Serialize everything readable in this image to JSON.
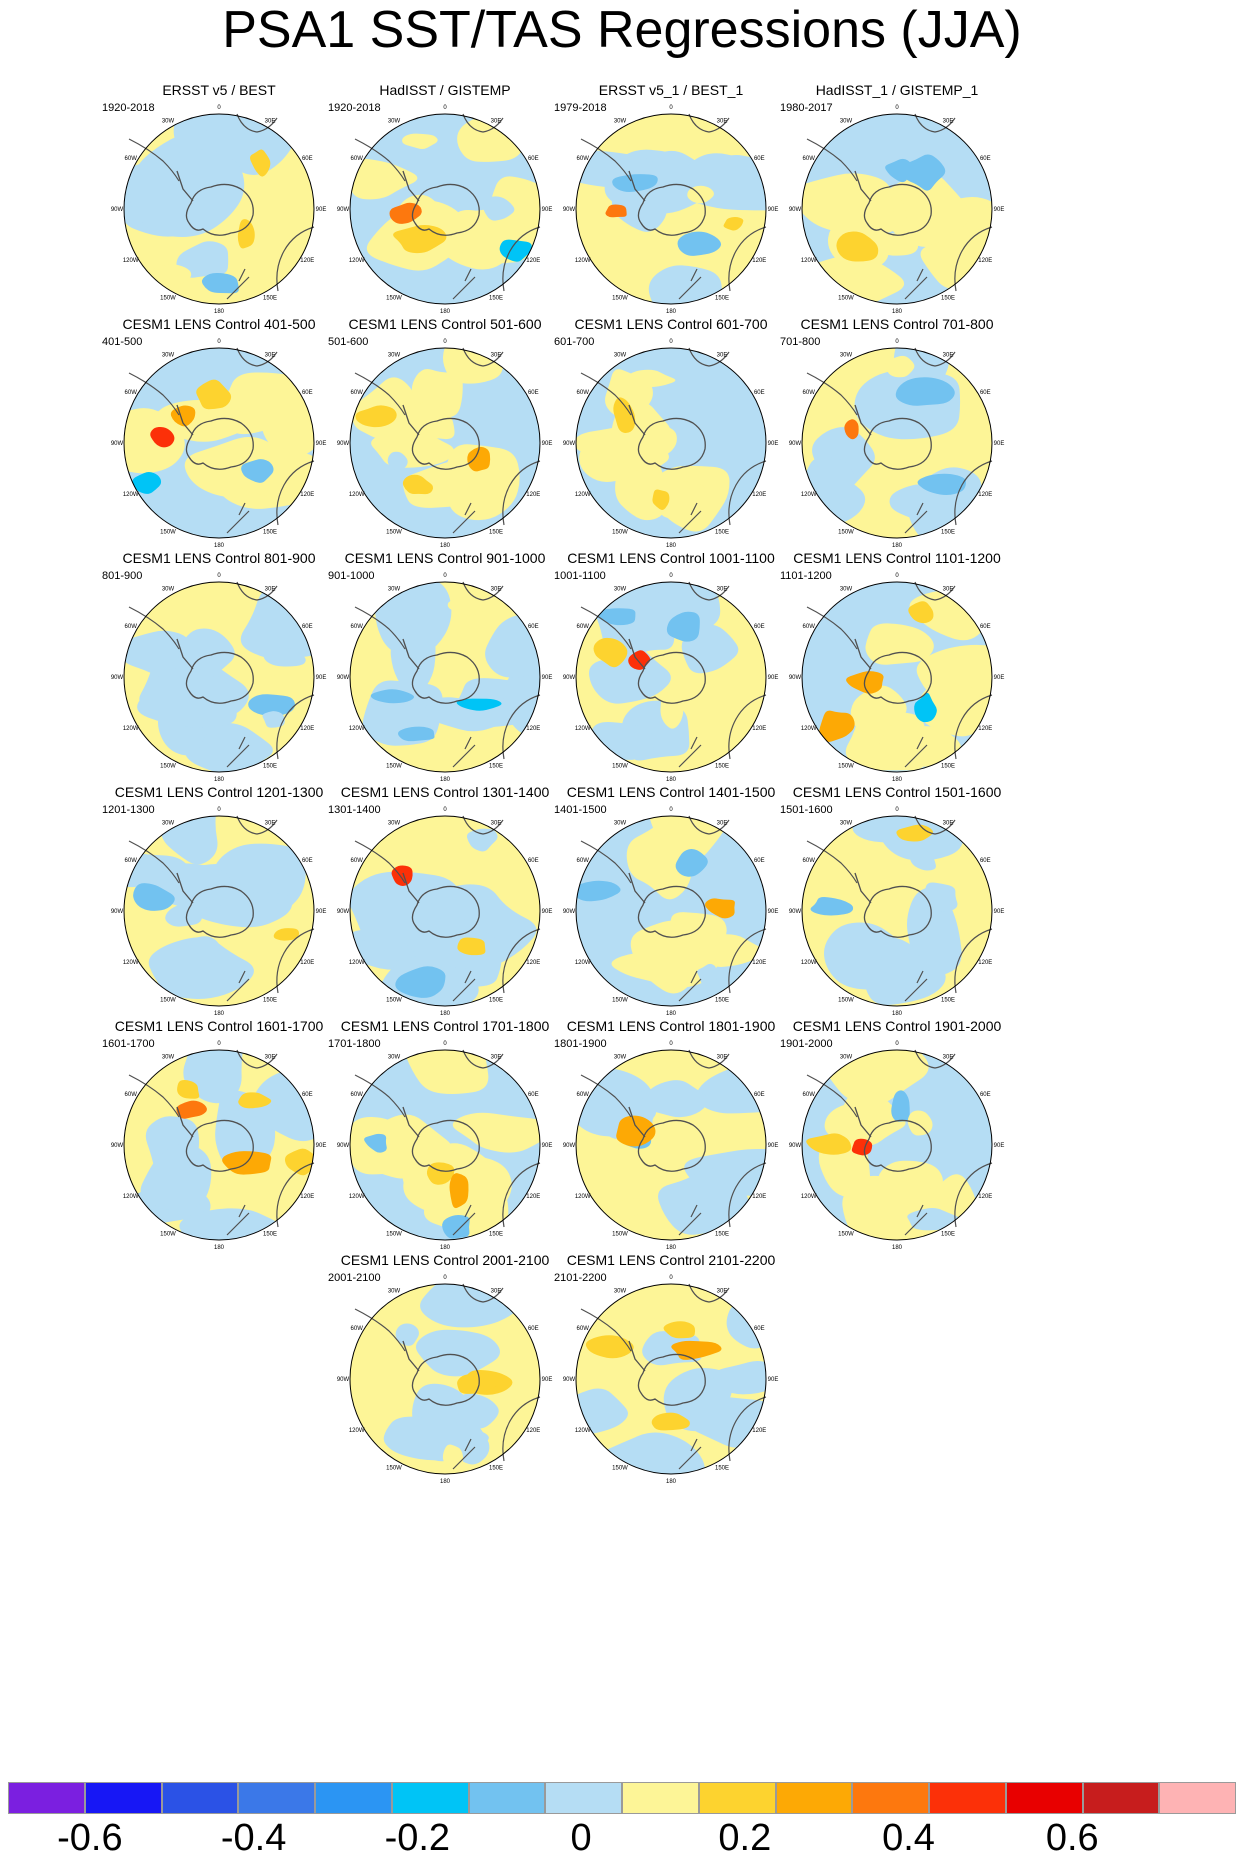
{
  "title": "PSA1 SST/TAS Regressions (JJA)",
  "lon_labels": [
    "0",
    "30E",
    "60E",
    "90E",
    "120E",
    "150E",
    "180",
    "150W",
    "120W",
    "90W",
    "60W",
    "30W"
  ],
  "colors": {
    "levels": [
      "#7b1fe0",
      "#1717f5",
      "#2b52e6",
      "#3b78e8",
      "#2b95f3",
      "#00c4f6",
      "#72c2f0",
      "#b5ddf4",
      "#fdf597",
      "#fdd32f",
      "#fda905",
      "#fd780e",
      "#fc3008",
      "#e80000",
      "#c71d1d",
      "#feb3b4"
    ],
    "ocean_neg": "#b5ddf4",
    "ocean_pos": "#fdf597",
    "coast": "#505050"
  },
  "colorbar": {
    "labels": [
      "-0.6",
      "-0.4",
      "-0.2",
      "0",
      "0.2",
      "0.4",
      "0.6"
    ],
    "values": [
      -0.6,
      -0.4,
      -0.2,
      0,
      0.2,
      0.4,
      0.6
    ],
    "range": [
      -0.7,
      0.8
    ]
  },
  "panels": [
    {
      "title": "ERSST v5 / BEST",
      "period": "1920-2018",
      "base": "pos",
      "seed": 1
    },
    {
      "title": "HadISST / GISTEMP",
      "period": "1920-2018",
      "base": "neg",
      "seed": 2
    },
    {
      "title": "ERSST v5_1 / BEST_1",
      "period": "1979-2018",
      "base": "pos",
      "seed": 3
    },
    {
      "title": "HadISST_1 / GISTEMP_1",
      "period": "1980-2017",
      "base": "neg",
      "seed": 4
    },
    {
      "title": "CESM1 LENS Control 401-500",
      "period": "401-500",
      "base": "neg",
      "seed": 5
    },
    {
      "title": "CESM1 LENS Control 501-600",
      "period": "501-600",
      "base": "neg",
      "seed": 6
    },
    {
      "title": "CESM1 LENS Control 601-700",
      "period": "601-700",
      "base": "neg",
      "seed": 7
    },
    {
      "title": "CESM1 LENS Control 701-800",
      "period": "701-800",
      "base": "pos",
      "seed": 8
    },
    {
      "title": "CESM1 LENS Control 801-900",
      "period": "801-900",
      "base": "pos",
      "seed": 9
    },
    {
      "title": "CESM1 LENS Control 901-1000",
      "period": "901-1000",
      "base": "pos",
      "seed": 10
    },
    {
      "title": "CESM1 LENS Control 1001-1100",
      "period": "1001-1100",
      "base": "pos",
      "seed": 11
    },
    {
      "title": "CESM1 LENS Control 1101-1200",
      "period": "1101-1200",
      "base": "neg",
      "seed": 12
    },
    {
      "title": "CESM1 LENS Control 1201-1300",
      "period": "1201-1300",
      "base": "pos",
      "seed": 13
    },
    {
      "title": "CESM1 LENS Control 1301-1400",
      "period": "1301-1400",
      "base": "pos",
      "seed": 14
    },
    {
      "title": "CESM1 LENS Control 1401-1500",
      "period": "1401-1500",
      "base": "neg",
      "seed": 15
    },
    {
      "title": "CESM1 LENS Control 1501-1600",
      "period": "1501-1600",
      "base": "pos",
      "seed": 16
    },
    {
      "title": "CESM1 LENS Control 1601-1700",
      "period": "1601-1700",
      "base": "pos",
      "seed": 17
    },
    {
      "title": "CESM1 LENS Control 1701-1800",
      "period": "1701-1800",
      "base": "neg",
      "seed": 18
    },
    {
      "title": "CESM1 LENS Control 1801-1900",
      "period": "1801-1900",
      "base": "pos",
      "seed": 19
    },
    {
      "title": "CESM1 LENS Control 1901-2000",
      "period": "1901-2000",
      "base": "neg",
      "seed": 20
    },
    {
      "title": "CESM1 LENS Control 2001-2100",
      "period": "2001-2100",
      "base": "pos",
      "seed": 21
    },
    {
      "title": "CESM1 LENS Control 2101-2200",
      "period": "2101-2200",
      "base": "pos",
      "seed": 22
    }
  ],
  "chart_data": {
    "type": "heatmap",
    "title": "PSA1 SST/TAS Regressions (JJA)",
    "projection": "south-polar stereographic",
    "panel_titles": [
      "ERSST v5 / BEST",
      "HadISST / GISTEMP",
      "ERSST v5_1 / BEST_1",
      "HadISST_1 / GISTEMP_1",
      "CESM1 LENS Control 401-500",
      "CESM1 LENS Control 501-600",
      "CESM1 LENS Control 601-700",
      "CESM1 LENS Control 701-800",
      "CESM1 LENS Control 801-900",
      "CESM1 LENS Control 901-1000",
      "CESM1 LENS Control 1001-1100",
      "CESM1 LENS Control 1101-1200",
      "CESM1 LENS Control 1201-1300",
      "CESM1 LENS Control 1301-1400",
      "CESM1 LENS Control 1401-1500",
      "CESM1 LENS Control 1501-1600",
      "CESM1 LENS Control 1601-1700",
      "CESM1 LENS Control 1701-1800",
      "CESM1 LENS Control 1801-1900",
      "CESM1 LENS Control 1901-2000",
      "CESM1 LENS Control 2001-2100",
      "CESM1 LENS Control 2101-2200"
    ],
    "colorbar_ticks": [
      -0.6,
      -0.4,
      -0.2,
      0,
      0.2,
      0.4,
      0.6
    ],
    "colorbar_range": [
      -0.7,
      0.8
    ],
    "levels": 16
  }
}
